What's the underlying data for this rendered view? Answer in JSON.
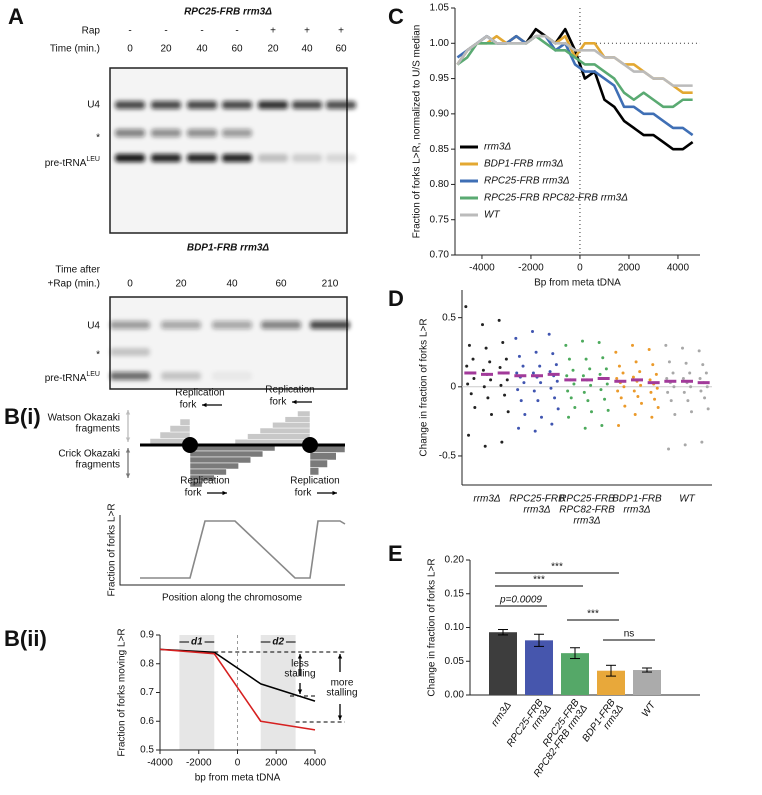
{
  "panel_labels": {
    "a": "A",
    "bi": "B(i)",
    "bii": "B(ii)",
    "c": "C",
    "d": "D",
    "e": "E"
  },
  "gel_top": {
    "title": "RPC25-FRB rrm3Δ",
    "row_labels": [
      "Rap",
      "Time (min.)"
    ],
    "rap": [
      "-",
      "-",
      "-",
      "-",
      "+",
      "+",
      "+"
    ],
    "time": [
      0,
      20,
      40,
      60,
      20,
      40,
      60
    ],
    "band_labels": [
      "U4",
      "*"
    ],
    "pre_label": "pre-tRNA",
    "pre_sup": "LEU"
  },
  "gel_bottom": {
    "title": "BDP1-FRB rrm3Δ",
    "row_label": [
      "Time after",
      "+Rap (min.)"
    ],
    "time": [
      0,
      20,
      40,
      60,
      210
    ],
    "band_labels": [
      "U4",
      "*"
    ],
    "pre_label": "pre-tRNA",
    "pre_sup": "LEU"
  },
  "diagram": {
    "forks": [
      [
        "Replication",
        "fork"
      ],
      [
        "Replication",
        "fork"
      ],
      [
        "Replication",
        "fork"
      ],
      [
        "Replication",
        "fork"
      ]
    ],
    "watson": [
      "Watson Okazaki",
      "fragments"
    ],
    "crick": [
      "Crick Okazaki",
      "fragments"
    ],
    "ylabel": "Fraction of forks L>R",
    "xlabel": "Position along the chromosome"
  },
  "chart_data": [
    {
      "type": "line",
      "ylabel": "Fraction of forks moving L>R",
      "xlabel": "bp from meta tDNA",
      "xlim": [
        -4000,
        4000
      ],
      "xticks": [
        -4000,
        -2000,
        0,
        2000,
        4000
      ],
      "ylim": [
        0.5,
        0.9
      ],
      "yticks": [
        0.5,
        0.6,
        0.7,
        0.8,
        0.9
      ],
      "x": [
        -4000,
        -1200,
        1200,
        4000
      ],
      "series": [
        {
          "color": "#000000",
          "values": [
            0.85,
            0.84,
            0.73,
            0.67
          ]
        },
        {
          "color": "#d62020",
          "values": [
            0.85,
            0.835,
            0.6,
            0.57
          ]
        }
      ],
      "annotations": {
        "d1": "d1",
        "d2": "d2",
        "less": [
          "less",
          "stalling"
        ],
        "more": [
          "more",
          "stalling"
        ]
      }
    },
    {
      "type": "line",
      "ylabel": "Fraction of forks L>R, normalized to U/S median",
      "xlabel": "Bp from meta tDNA",
      "legend": "lower left",
      "xlim": [
        -5100,
        4900
      ],
      "xticks": [
        -4000,
        -2000,
        0,
        2000,
        4000
      ],
      "ylim": [
        0.7,
        1.05
      ],
      "yticks": [
        {
          "value": 0.7,
          "label": "0.70"
        },
        0.75,
        {
          "value": 0.8,
          "label": "0.80"
        },
        0.85,
        {
          "value": 0.9,
          "label": "0.90"
        },
        0.95,
        {
          "value": 1.0,
          "label": "1.00"
        },
        1.05
      ],
      "x": [
        -5000,
        -4600,
        -4200,
        -3800,
        -3400,
        -3000,
        -2600,
        -2200,
        -1800,
        -1400,
        -1000,
        -600,
        -200,
        200,
        600,
        1000,
        1400,
        1800,
        2200,
        2600,
        3000,
        3400,
        3800,
        4200,
        4600
      ],
      "series": [
        {
          "name": "rrm3Δ",
          "color": "#000000",
          "values": [
            0.97,
            0.99,
            1.0,
            1.01,
            1.0,
            1.0,
            1.01,
            1.0,
            1.02,
            1.01,
            1.0,
            1.02,
            0.99,
            0.95,
            0.96,
            0.92,
            0.91,
            0.89,
            0.88,
            0.87,
            0.87,
            0.86,
            0.85,
            0.85,
            0.86
          ]
        },
        {
          "name": "BDP1-FRB rrm3Δ",
          "color": "#e3a832",
          "values": [
            0.97,
            0.99,
            1.0,
            1.0,
            1.01,
            1.0,
            1.01,
            1.0,
            1.01,
            1.01,
            1.0,
            1.01,
            0.98,
            1.0,
            1.0,
            0.98,
            0.98,
            0.97,
            0.97,
            0.96,
            0.95,
            0.95,
            0.94,
            0.93,
            0.93
          ]
        },
        {
          "name": "RPC25-FRB rrm3Δ",
          "color": "#3f6fb5",
          "values": [
            0.98,
            0.99,
            1.0,
            1.01,
            1.0,
            1.0,
            1.01,
            1.0,
            1.01,
            1.01,
            0.99,
            1.0,
            0.97,
            0.96,
            0.96,
            0.95,
            0.94,
            0.91,
            0.91,
            0.9,
            0.9,
            0.89,
            0.88,
            0.88,
            0.87
          ]
        },
        {
          "name": "RPC25-FRB RPC82-FRB rrm3Δ",
          "color": "#5aaa72",
          "values": [
            0.97,
            0.98,
            1.0,
            1.0,
            1.0,
            1.0,
            1.0,
            1.0,
            1.01,
            1.0,
            0.99,
            0.99,
            0.98,
            0.97,
            0.97,
            0.96,
            0.95,
            0.93,
            0.92,
            0.93,
            0.92,
            0.91,
            0.91,
            0.92,
            0.92
          ]
        },
        {
          "name": "WT",
          "color": "#bbbbbb",
          "values": [
            0.97,
            0.99,
            1.0,
            1.01,
            1.0,
            1.0,
            1.0,
            1.0,
            1.01,
            1.01,
            1.0,
            1.0,
            0.99,
            0.99,
            0.99,
            0.98,
            0.98,
            0.97,
            0.96,
            0.96,
            0.95,
            0.95,
            0.94,
            0.94,
            0.94
          ]
        }
      ]
    },
    {
      "type": "strip",
      "ylabel": "Change in fraction of forks L>R",
      "ylim": [
        -0.71,
        0.7
      ],
      "yticks": [
        0.5,
        0,
        -0.5
      ],
      "median_color": "#a23a9a",
      "groups": [
        {
          "label": [
            "rrm3Δ"
          ],
          "color": "#222222",
          "columns": [
            {
              "values": [
                0.58,
                0.3,
                0.2,
                0.15,
                0.1,
                0.06,
                0.02,
                -0.05,
                -0.15,
                -0.35
              ],
              "median": 0.1
            },
            {
              "values": [
                0.45,
                0.28,
                0.18,
                0.12,
                0.09,
                0.05,
                0.0,
                -0.08,
                -0.2,
                -0.43
              ],
              "median": 0.09
            },
            {
              "values": [
                0.48,
                0.32,
                0.2,
                0.14,
                0.1,
                0.05,
                0.01,
                -0.06,
                -0.18,
                -0.4
              ],
              "median": 0.1
            }
          ]
        },
        {
          "label": [
            "RPC25-FRB",
            "rrm3Δ"
          ],
          "color": "#4055b0",
          "columns": [
            {
              "values": [
                0.35,
                0.22,
                0.15,
                0.1,
                0.07,
                0.03,
                -0.02,
                -0.1,
                -0.2,
                -0.3
              ],
              "median": 0.08
            },
            {
              "values": [
                0.4,
                0.25,
                0.15,
                0.1,
                0.07,
                0.03,
                -0.03,
                -0.1,
                -0.22,
                -0.32
              ],
              "median": 0.08
            },
            {
              "values": [
                0.38,
                0.24,
                0.16,
                0.11,
                0.08,
                0.04,
                -0.01,
                -0.08,
                -0.16,
                -0.27
              ],
              "median": 0.09
            }
          ]
        },
        {
          "label": [
            "RPC25-FRB",
            "RPC82-FRB",
            "rrm3Δ"
          ],
          "color": "#4caa5c",
          "columns": [
            {
              "values": [
                0.3,
                0.2,
                0.12,
                0.08,
                0.05,
                0.02,
                -0.03,
                -0.08,
                -0.15,
                -0.22
              ],
              "median": 0.05
            },
            {
              "values": [
                0.33,
                0.2,
                0.13,
                0.08,
                0.05,
                0.01,
                -0.04,
                -0.1,
                -0.18,
                -0.3
              ],
              "median": 0.05
            },
            {
              "values": [
                0.32,
                0.21,
                0.13,
                0.09,
                0.06,
                0.02,
                -0.02,
                -0.09,
                -0.17,
                -0.28
              ],
              "median": 0.06
            }
          ]
        },
        {
          "label": [
            "BDP1-FRB",
            "rrm3Δ"
          ],
          "color": "#eb9a2a",
          "columns": [
            {
              "values": [
                0.25,
                0.15,
                0.1,
                0.06,
                0.03,
                0.0,
                -0.03,
                -0.08,
                -0.14,
                -0.28
              ],
              "median": 0.04
            },
            {
              "values": [
                0.3,
                0.18,
                0.11,
                0.07,
                0.04,
                0.01,
                -0.03,
                -0.07,
                -0.12,
                -0.2
              ],
              "median": 0.05
            },
            {
              "values": [
                0.27,
                0.16,
                0.09,
                0.05,
                0.02,
                -0.01,
                -0.04,
                -0.09,
                -0.15,
                -0.22
              ],
              "median": 0.03
            }
          ]
        },
        {
          "label": [
            "WT"
          ],
          "color": "#a8a8a8",
          "columns": [
            {
              "values": [
                0.3,
                0.18,
                0.1,
                0.06,
                0.03,
                0.0,
                -0.04,
                -0.1,
                -0.2,
                -0.45
              ],
              "median": 0.04
            },
            {
              "values": [
                0.28,
                0.17,
                0.1,
                0.06,
                0.03,
                0.0,
                -0.04,
                -0.1,
                -0.18,
                -0.42
              ],
              "median": 0.04
            },
            {
              "values": [
                0.26,
                0.16,
                0.1,
                0.06,
                0.03,
                0.0,
                -0.03,
                -0.08,
                -0.16,
                -0.4
              ],
              "median": 0.03
            }
          ]
        }
      ]
    },
    {
      "type": "bar",
      "ylabel": "Change in fraction of forks L>R",
      "ylim": [
        0,
        0.2
      ],
      "yticks": [
        {
          "value": 0,
          "label": "0.00"
        },
        0.05,
        {
          "value": 0.1,
          "label": "0.10"
        },
        0.15,
        {
          "value": 0.2,
          "label": "0.20"
        }
      ],
      "categories": [
        [
          "rrm3Δ"
        ],
        [
          "RPC25-FRB",
          "rrm3Δ"
        ],
        [
          "RPC25-FRB",
          "RPC82-FRB rrm3Δ"
        ],
        [
          "BDP1-FRB",
          "rrm3Δ"
        ],
        [
          "WT"
        ]
      ],
      "values": [
        0.093,
        0.081,
        0.062,
        0.036,
        0.037
      ],
      "errors": [
        0.004,
        0.009,
        0.008,
        0.008,
        0.003
      ],
      "colors": [
        "#3d3d3d",
        "#4656ad",
        "#55a868",
        "#e8a83a",
        "#ababab"
      ],
      "annotations": [
        "***",
        "***",
        "p=0.0009",
        "***",
        "ns"
      ]
    }
  ]
}
